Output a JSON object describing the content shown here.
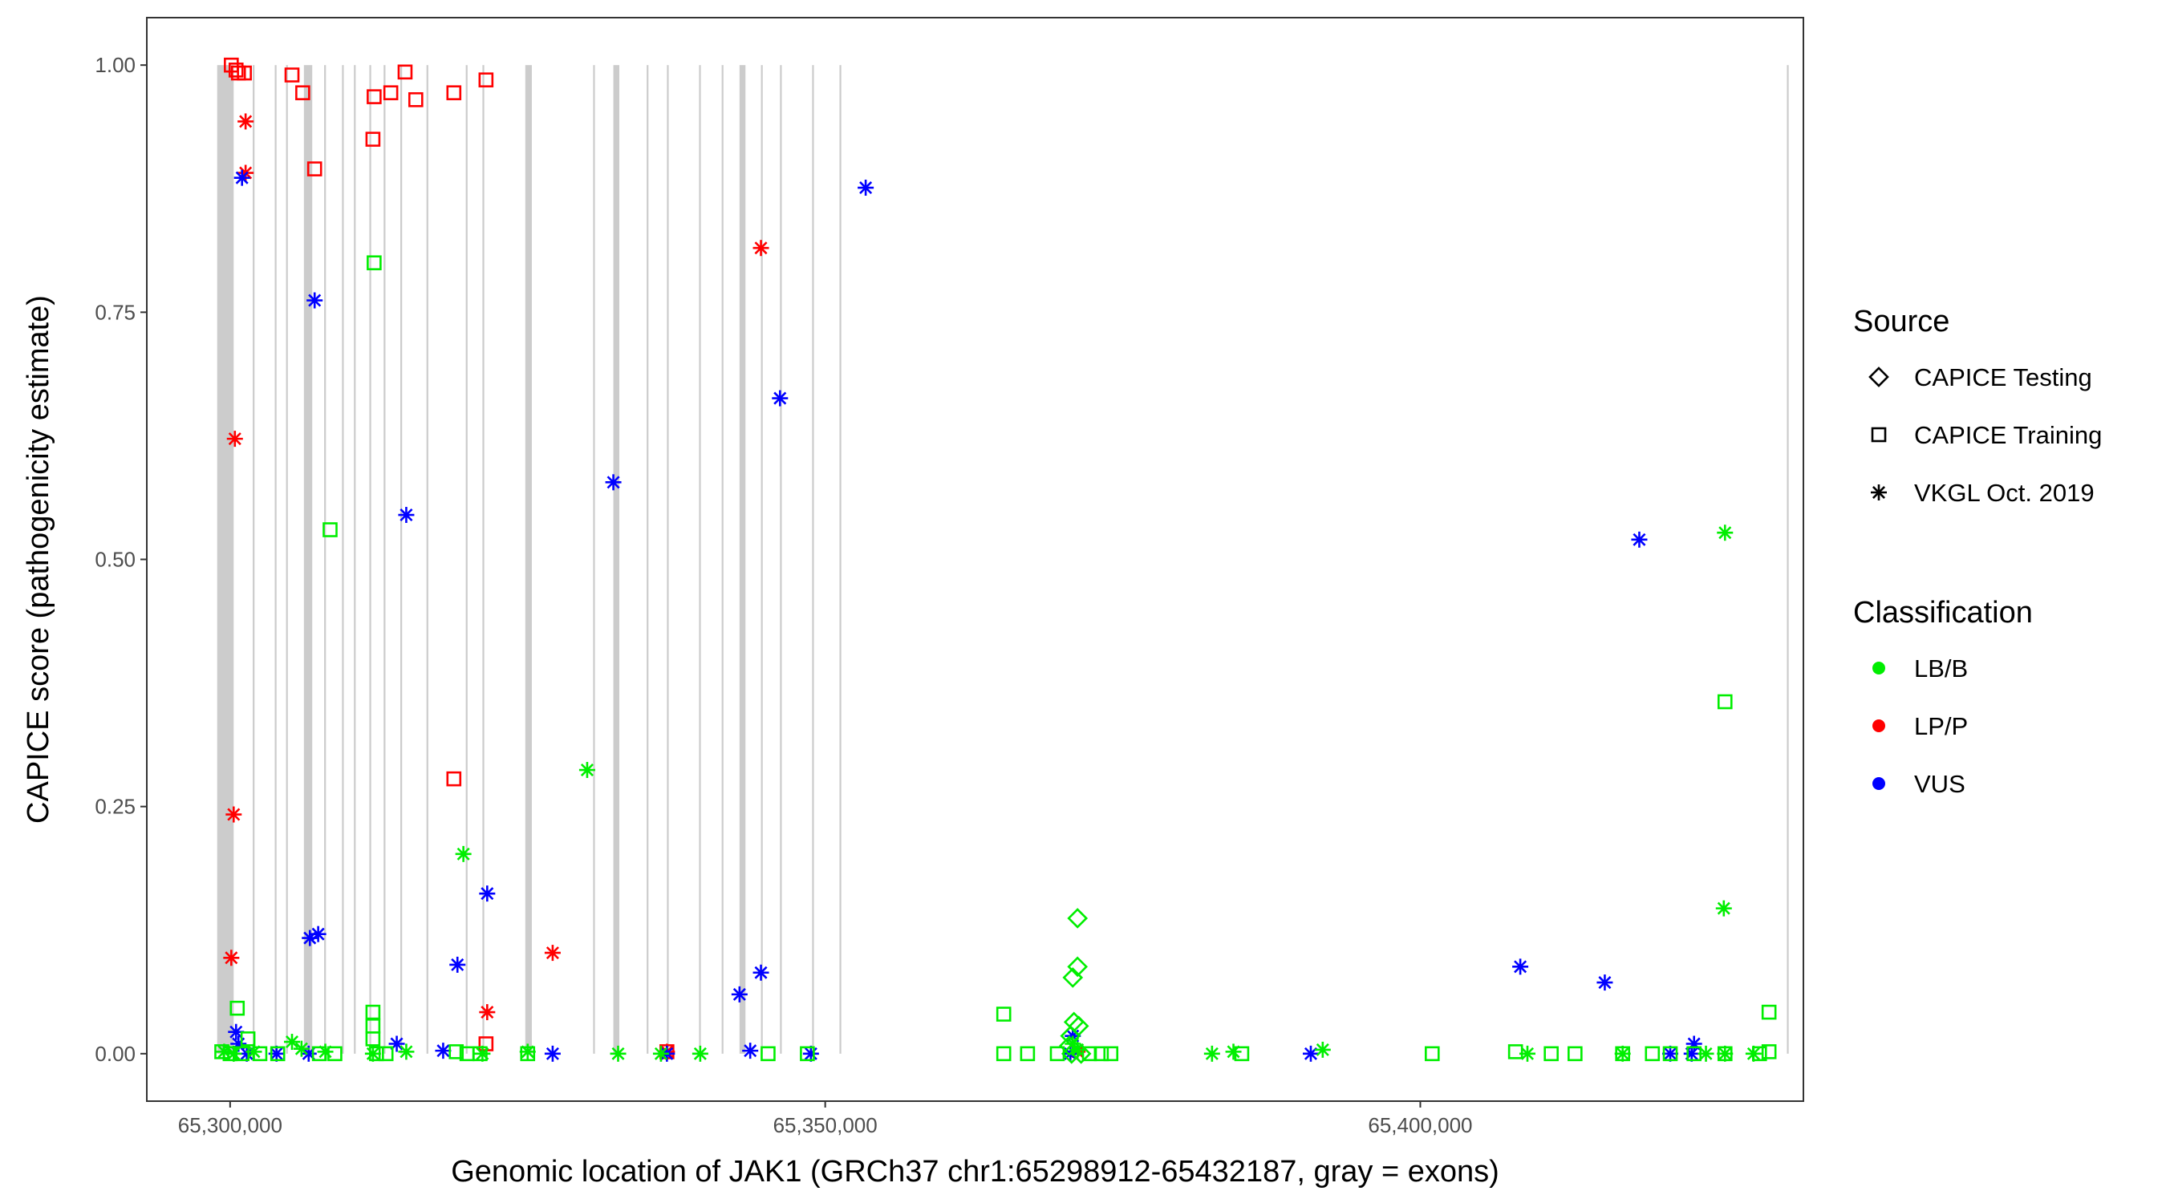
{
  "chart_data": {
    "type": "scatter",
    "title": "",
    "xlabel": "Genomic location of JAK1 (GRCh37 chr1:65298912-65432187, gray = exons)",
    "ylabel": "CAPICE score (pathogenicity estimate)",
    "xlim": [
      65293000,
      65432187
    ],
    "ylim": [
      -0.048,
      1.048
    ],
    "x_ticks": [
      65300000,
      65350000,
      65400000
    ],
    "x_tick_labels": [
      "65,300,000",
      "65,350,000",
      "65,400,000"
    ],
    "y_ticks": [
      0,
      0.25,
      0.5,
      0.75,
      1
    ],
    "y_tick_labels": [
      "0.00",
      "0.25",
      "0.50",
      "0.75",
      "1.00"
    ],
    "grid": false,
    "legend_position": "right",
    "exons": [
      [
        65298912,
        65300300
      ],
      [
        65301900,
        65302050
      ],
      [
        65303750,
        65303900
      ],
      [
        65304700,
        65304850
      ],
      [
        65306200,
        65306900
      ],
      [
        65307900,
        65308050
      ],
      [
        65309400,
        65309550
      ],
      [
        65310400,
        65310550
      ],
      [
        65311700,
        65311850
      ],
      [
        65312900,
        65313050
      ],
      [
        65314300,
        65314450
      ],
      [
        65316500,
        65316650
      ],
      [
        65319800,
        65319950
      ],
      [
        65321200,
        65321350
      ],
      [
        65324800,
        65325350
      ],
      [
        65330500,
        65330650
      ],
      [
        65332200,
        65332700
      ],
      [
        65335000,
        65335150
      ],
      [
        65336700,
        65336850
      ],
      [
        65339400,
        65339550
      ],
      [
        65341300,
        65341450
      ],
      [
        65342800,
        65343300
      ],
      [
        65344600,
        65344750
      ],
      [
        65346200,
        65346350
      ],
      [
        65348900,
        65349050
      ],
      [
        65351200,
        65351350
      ],
      [
        65430800,
        65430950
      ]
    ],
    "legend": {
      "source_title": "Source",
      "source_items": [
        {
          "label": "CAPICE Testing",
          "shape": "diamond"
        },
        {
          "label": "CAPICE Training",
          "shape": "square"
        },
        {
          "label": "VKGL Oct. 2019",
          "shape": "asterisk"
        }
      ],
      "class_title": "Classification",
      "class_items": [
        {
          "label": "LB/B",
          "color": "#00ee00"
        },
        {
          "label": "LP/P",
          "color": "#ff0000"
        },
        {
          "label": "VUS",
          "color": "#0000ff"
        }
      ]
    },
    "colors": {
      "LB/B": "#00ee00",
      "LP/P": "#ff0000",
      "VUS": "#0000ff"
    },
    "series": [
      {
        "source": "CAPICE Training",
        "class": "LP/P",
        "points": [
          [
            65300100,
            1.0
          ],
          [
            65300500,
            0.995
          ],
          [
            65300700,
            0.992
          ],
          [
            65301200,
            0.992
          ],
          [
            65305200,
            0.99
          ],
          [
            65306100,
            0.972
          ],
          [
            65307100,
            0.895
          ],
          [
            65312100,
            0.968
          ],
          [
            65312000,
            0.925
          ],
          [
            65313500,
            0.972
          ],
          [
            65314700,
            0.993
          ],
          [
            65315600,
            0.965
          ],
          [
            65318800,
            0.972
          ],
          [
            65321500,
            0.985
          ],
          [
            65318800,
            0.278
          ],
          [
            65321500,
            0.01
          ],
          [
            65336700,
            0.002
          ]
        ]
      },
      {
        "source": "VKGL Oct. 2019",
        "class": "LP/P",
        "points": [
          [
            65300400,
            0.622
          ],
          [
            65300300,
            0.242
          ],
          [
            65300100,
            0.097
          ],
          [
            65301300,
            0.943
          ],
          [
            65301300,
            0.891
          ],
          [
            65321600,
            0.042
          ],
          [
            65327100,
            0.102
          ],
          [
            65344600,
            0.815
          ],
          [
            65336700,
            0.002
          ],
          [
            65371200,
            0.002
          ]
        ]
      },
      {
        "source": "VKGL Oct. 2019",
        "class": "VUS",
        "points": [
          [
            65301000,
            0.886
          ],
          [
            65307100,
            0.762
          ],
          [
            65314800,
            0.545
          ],
          [
            65332200,
            0.578
          ],
          [
            65346200,
            0.663
          ],
          [
            65353400,
            0.876
          ],
          [
            65321600,
            0.162
          ],
          [
            65319100,
            0.09
          ],
          [
            65306700,
            0.117
          ],
          [
            65307400,
            0.121
          ],
          [
            65342800,
            0.06
          ],
          [
            65344600,
            0.082
          ],
          [
            65300500,
            0.022
          ],
          [
            65300700,
            0.01
          ],
          [
            65301400,
            0.0
          ],
          [
            65303900,
            0.0
          ],
          [
            65306600,
            0.0
          ],
          [
            65314000,
            0.01
          ],
          [
            65317900,
            0.003
          ],
          [
            65327100,
            0.0
          ],
          [
            65336700,
            0.0
          ],
          [
            65343700,
            0.003
          ],
          [
            65348800,
            0.0
          ],
          [
            65370800,
            0.018
          ],
          [
            65370600,
            0.0
          ],
          [
            65390800,
            0.0
          ],
          [
            65408400,
            0.088
          ],
          [
            65415500,
            0.072
          ],
          [
            65418400,
            0.52
          ],
          [
            65421000,
            0.0
          ],
          [
            65423000,
            0.01
          ],
          [
            65422800,
            0.0
          ]
        ]
      },
      {
        "source": "VKGL Oct. 2019",
        "class": "LB/B",
        "points": [
          [
            65330000,
            0.287
          ],
          [
            65319600,
            0.202
          ],
          [
            65425600,
            0.527
          ],
          [
            65425500,
            0.147
          ],
          [
            65299500,
            0.002
          ],
          [
            65300300,
            0.0
          ],
          [
            65302000,
            0.002
          ],
          [
            65305200,
            0.012
          ],
          [
            65306000,
            0.005
          ],
          [
            65308000,
            0.002
          ],
          [
            65312000,
            0.0
          ],
          [
            65314800,
            0.002
          ],
          [
            65321200,
            0.0
          ],
          [
            65325000,
            0.002
          ],
          [
            65332600,
            0.0
          ],
          [
            65336200,
            0.0
          ],
          [
            65339500,
            0.0
          ],
          [
            65370800,
            0.01
          ],
          [
            65371200,
            0.004
          ],
          [
            65382500,
            0.0
          ],
          [
            65384300,
            0.002
          ],
          [
            65391800,
            0.004
          ],
          [
            65409000,
            0.0
          ],
          [
            65417000,
            0.0
          ],
          [
            65424000,
            0.0
          ],
          [
            65425600,
            0.0
          ],
          [
            65428000,
            0.0
          ]
        ]
      },
      {
        "source": "CAPICE Training",
        "class": "LB/B",
        "points": [
          [
            65312100,
            0.8
          ],
          [
            65308400,
            0.53
          ],
          [
            65300600,
            0.046
          ],
          [
            65312000,
            0.042
          ],
          [
            65312000,
            0.028
          ],
          [
            65312000,
            0.015
          ],
          [
            65301500,
            0.015
          ],
          [
            65299300,
            0.002
          ],
          [
            65300000,
            0.0
          ],
          [
            65301000,
            0.0
          ],
          [
            65302500,
            0.0
          ],
          [
            65304000,
            0.0
          ],
          [
            65307500,
            0.0
          ],
          [
            65308800,
            0.0
          ],
          [
            65312300,
            0.0
          ],
          [
            65313100,
            0.0
          ],
          [
            65319000,
            0.002
          ],
          [
            65319900,
            0.0
          ],
          [
            65321000,
            0.0
          ],
          [
            65325000,
            0.0
          ],
          [
            65345200,
            0.0
          ],
          [
            65348500,
            0.0
          ],
          [
            65365000,
            0.04
          ],
          [
            65365000,
            0.0
          ],
          [
            65367000,
            0.0
          ],
          [
            65369500,
            0.0
          ],
          [
            65372200,
            0.0
          ],
          [
            65373200,
            0.0
          ],
          [
            65374000,
            0.0
          ],
          [
            65385000,
            0.0
          ],
          [
            65401000,
            0.0
          ],
          [
            65408000,
            0.002
          ],
          [
            65411000,
            0.0
          ],
          [
            65413000,
            0.0
          ],
          [
            65417000,
            0.0
          ],
          [
            65419500,
            0.0
          ],
          [
            65421000,
            0.0
          ],
          [
            65423000,
            0.0
          ],
          [
            65425600,
            0.356
          ],
          [
            65425600,
            0.0
          ],
          [
            65428500,
            0.0
          ],
          [
            65429300,
            0.042
          ],
          [
            65429300,
            0.002
          ]
        ]
      },
      {
        "source": "CAPICE Testing",
        "class": "LB/B",
        "points": [
          [
            65371200,
            0.137
          ],
          [
            65371200,
            0.088
          ],
          [
            65370800,
            0.077
          ],
          [
            65370900,
            0.032
          ],
          [
            65371300,
            0.028
          ],
          [
            65370600,
            0.018
          ],
          [
            65370500,
            0.008
          ],
          [
            65370700,
            0.0
          ],
          [
            65371500,
            0.0
          ]
        ]
      }
    ]
  }
}
